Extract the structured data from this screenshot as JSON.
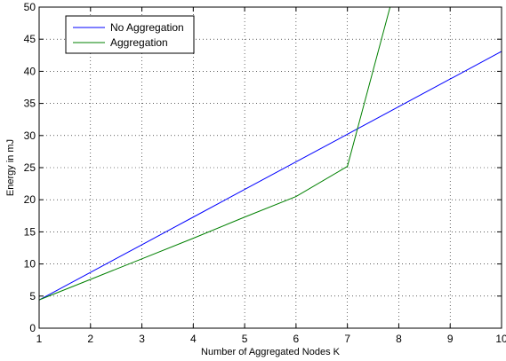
{
  "chart_data": {
    "type": "line",
    "title": "",
    "xlabel": "Number of Aggregated Nodes K",
    "ylabel": "Energy in mJ",
    "xlim": [
      1,
      10
    ],
    "ylim": [
      0,
      50
    ],
    "xticks": [
      1,
      2,
      3,
      4,
      5,
      6,
      7,
      8,
      9,
      10
    ],
    "yticks": [
      0,
      5,
      10,
      15,
      20,
      25,
      30,
      35,
      40,
      45,
      50
    ],
    "grid": true,
    "grid_style": "dotted",
    "legend_position": "top-left",
    "series": [
      {
        "name": "No Aggregation",
        "color": "#0000ff",
        "x": [
          1,
          2,
          3,
          4,
          5,
          6,
          7,
          8,
          9,
          10
        ],
        "y": [
          4.4,
          8.7,
          13.0,
          17.3,
          21.6,
          25.9,
          30.2,
          34.5,
          38.8,
          43.1
        ]
      },
      {
        "name": "Aggregation",
        "color": "#008000",
        "x": [
          1,
          2,
          3,
          4,
          5,
          6,
          7,
          7.83
        ],
        "y": [
          4.4,
          7.6,
          10.8,
          14.0,
          17.3,
          20.5,
          25.2,
          50
        ]
      }
    ]
  }
}
